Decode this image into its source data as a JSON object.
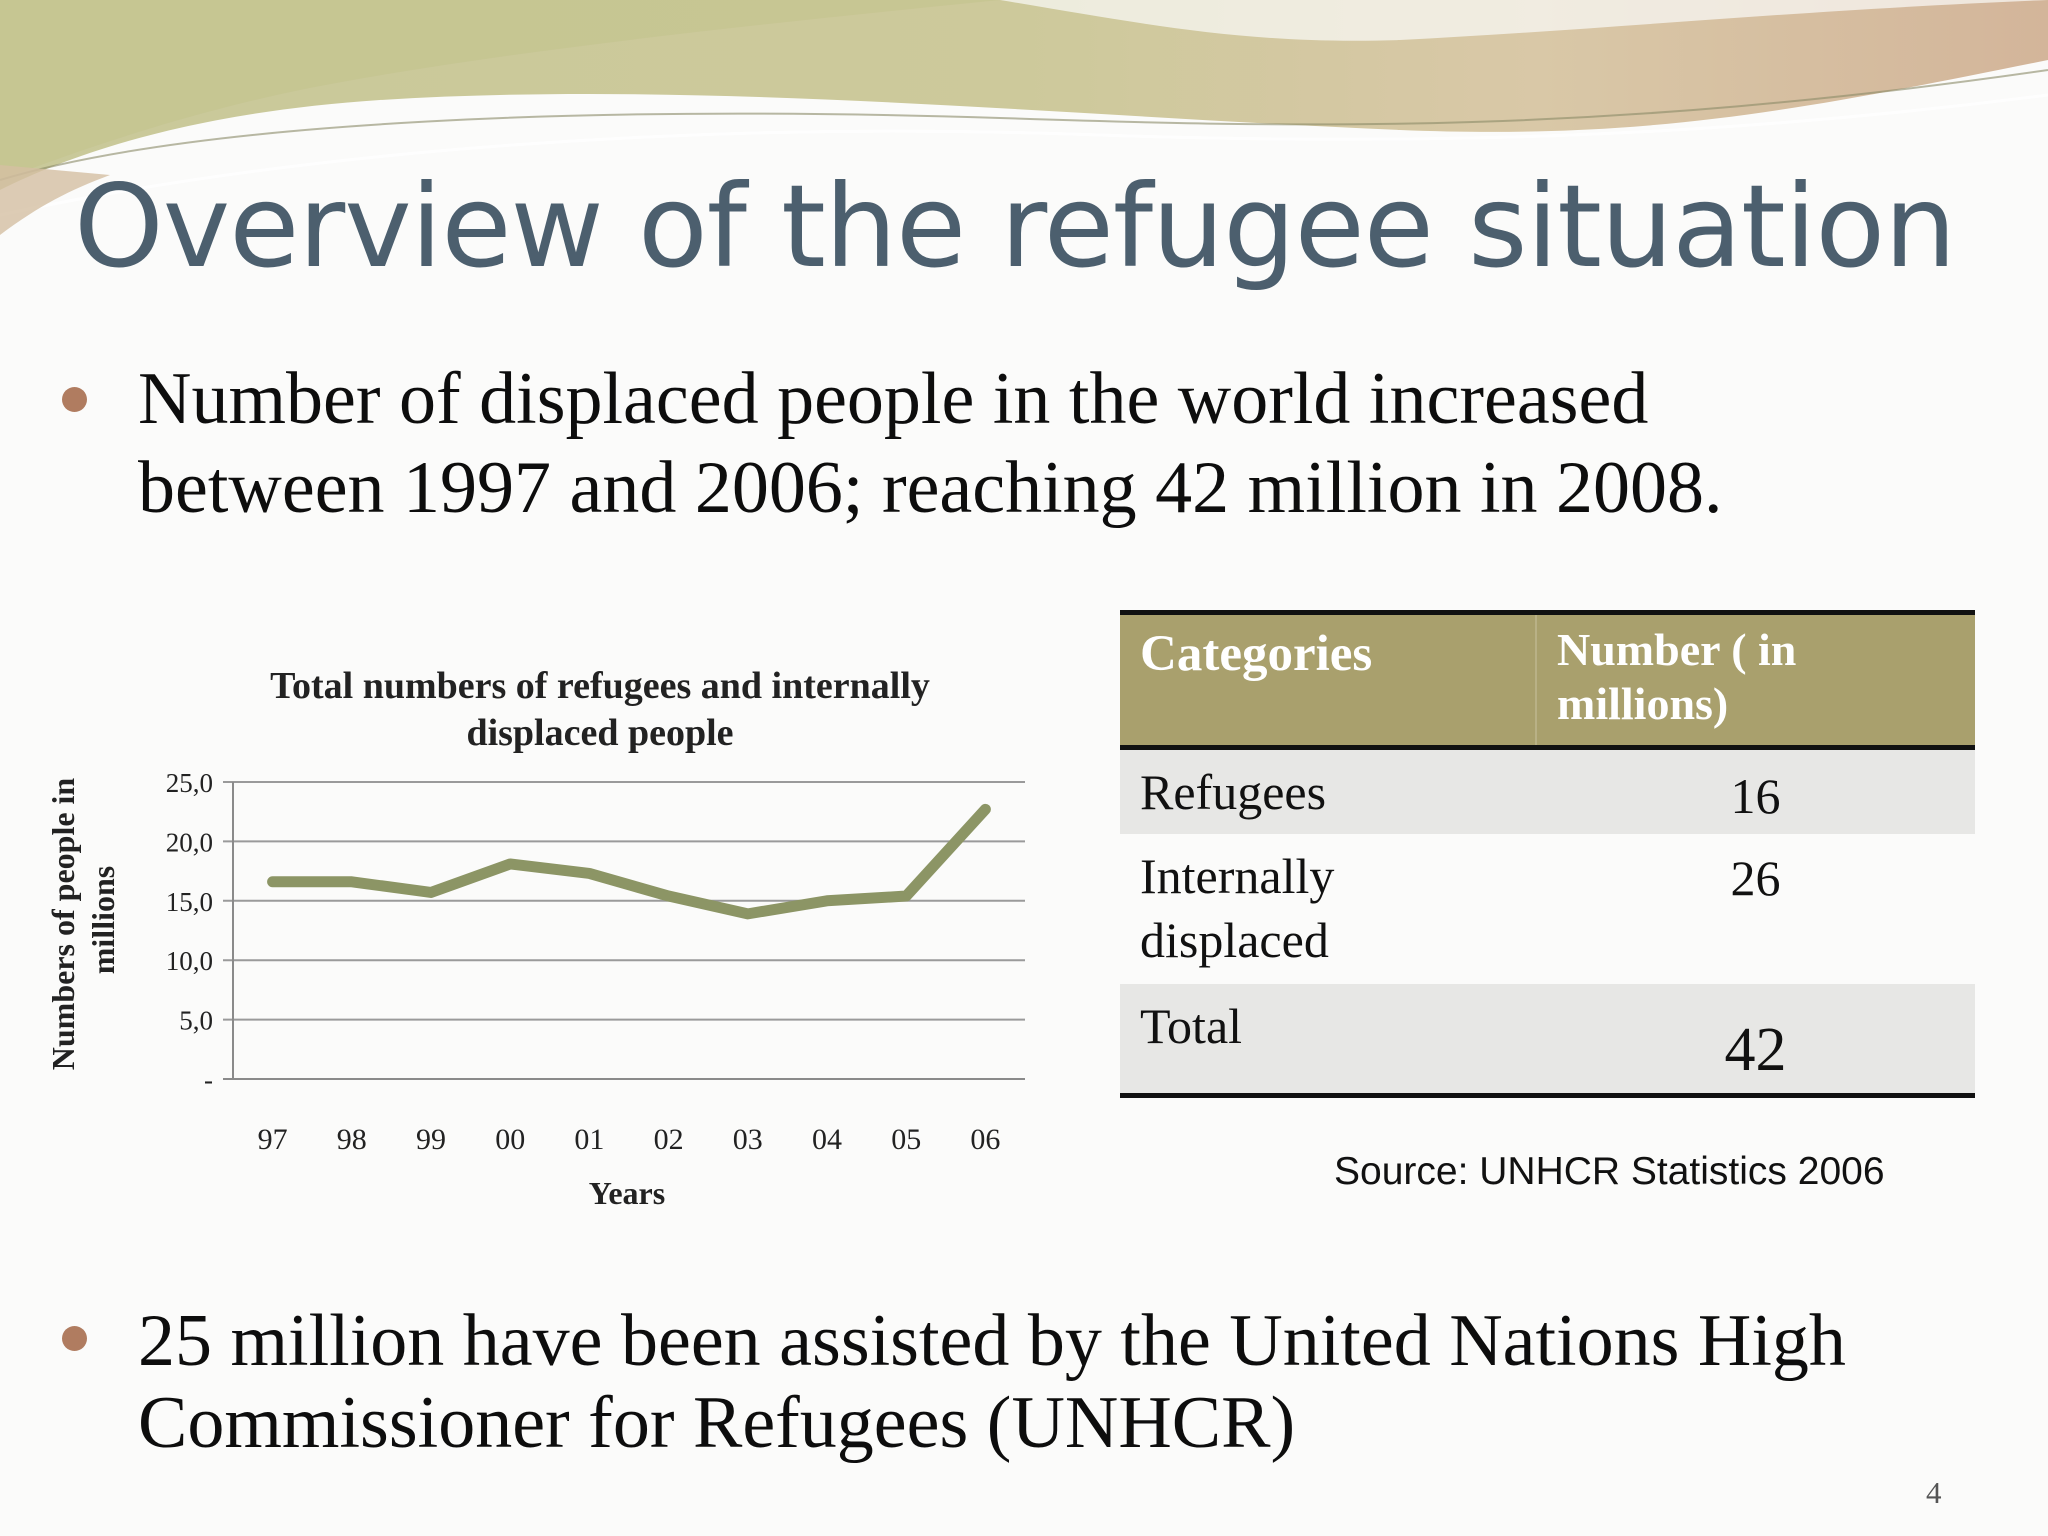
{
  "slide": {
    "title": "Overview of the refugee situation",
    "bullets": [
      {
        "line1": "Number of displaced people in the world increased",
        "line2": "between  1997 and 2006; reaching 42 million in 2008."
      },
      {
        "line1": "25 million have been assisted by the United Nations High",
        "line2": "Commissioner for Refugees (UNHCR)"
      }
    ],
    "page_number": "4",
    "source": "Source:  UNHCR Statistics 2006"
  },
  "chart_data": {
    "type": "line",
    "title": "Total numbers of refugees and internally displaced people",
    "title_lines": [
      "Total numbers of refugees and internally",
      "displaced people"
    ],
    "xlabel": "Years",
    "ylabel_lines": [
      "Numbers of people in",
      "millions"
    ],
    "categories": [
      "97",
      "98",
      "99",
      "00",
      "01",
      "02",
      "03",
      "04",
      "05",
      "06"
    ],
    "series": [
      {
        "values": [
          16.6,
          16.6,
          15.7,
          18.1,
          17.3,
          15.4,
          13.9,
          15.0,
          15.4,
          22.7
        ]
      }
    ],
    "ylim": [
      0,
      25
    ],
    "yticks": [
      0,
      5,
      10,
      15,
      20,
      25
    ],
    "ytick_labels": [
      "-",
      "5,0",
      "10,0",
      "15,0",
      "20,0",
      "25,0"
    ],
    "grid": true,
    "line_color": "#8c9565"
  },
  "table": {
    "headers": [
      "Categories",
      "Number ( in millions)"
    ],
    "header_lines": [
      [
        "Categories"
      ],
      [
        "Number ( in",
        "millions)"
      ]
    ],
    "rows": [
      {
        "category": "Refugees",
        "category_lines": [
          "Refugees"
        ],
        "number": "16"
      },
      {
        "category": "Internally displaced",
        "category_lines": [
          "Internally",
          "displaced"
        ],
        "number": "26"
      },
      {
        "category": "Total",
        "category_lines": [
          "Total"
        ],
        "number": "42"
      }
    ]
  },
  "colors": {
    "accent": "#a9a06d",
    "title": "#4c5f6e",
    "bullet": "#b07c60"
  }
}
